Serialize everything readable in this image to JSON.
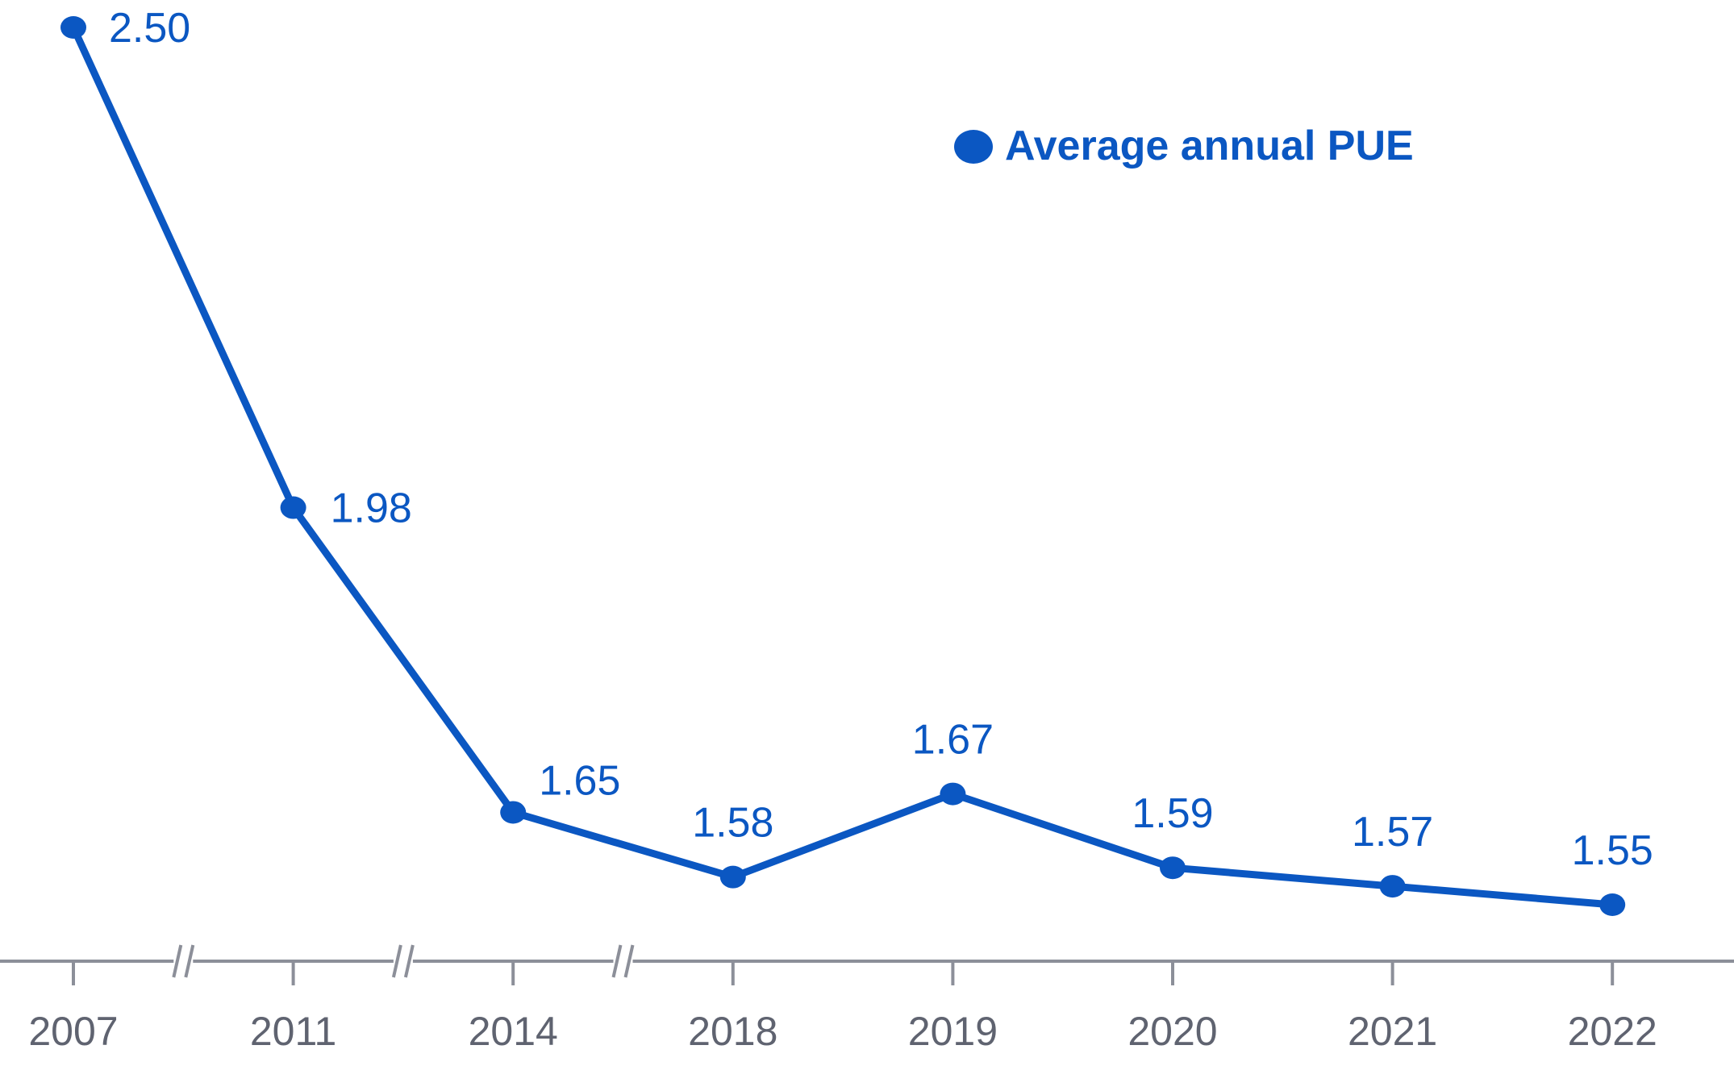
{
  "chart_data": {
    "type": "line",
    "categories": [
      "2007",
      "2011",
      "2014",
      "2018",
      "2019",
      "2020",
      "2021",
      "2022"
    ],
    "series": [
      {
        "name": "Average annual PUE",
        "values": [
          2.5,
          1.98,
          1.65,
          1.58,
          1.67,
          1.59,
          1.57,
          1.55
        ],
        "data_labels": [
          "2.50",
          "1.98",
          "1.65",
          "1.58",
          "1.67",
          "1.59",
          "1.57",
          "1.55"
        ]
      }
    ],
    "axis_breaks_after": [
      "2007",
      "2011",
      "2014"
    ],
    "grid": false,
    "legend_position": "top-right",
    "colors": {
      "series": "#0b57c2",
      "axis": "#8c8f99",
      "tick_text": "#5f6370"
    }
  }
}
